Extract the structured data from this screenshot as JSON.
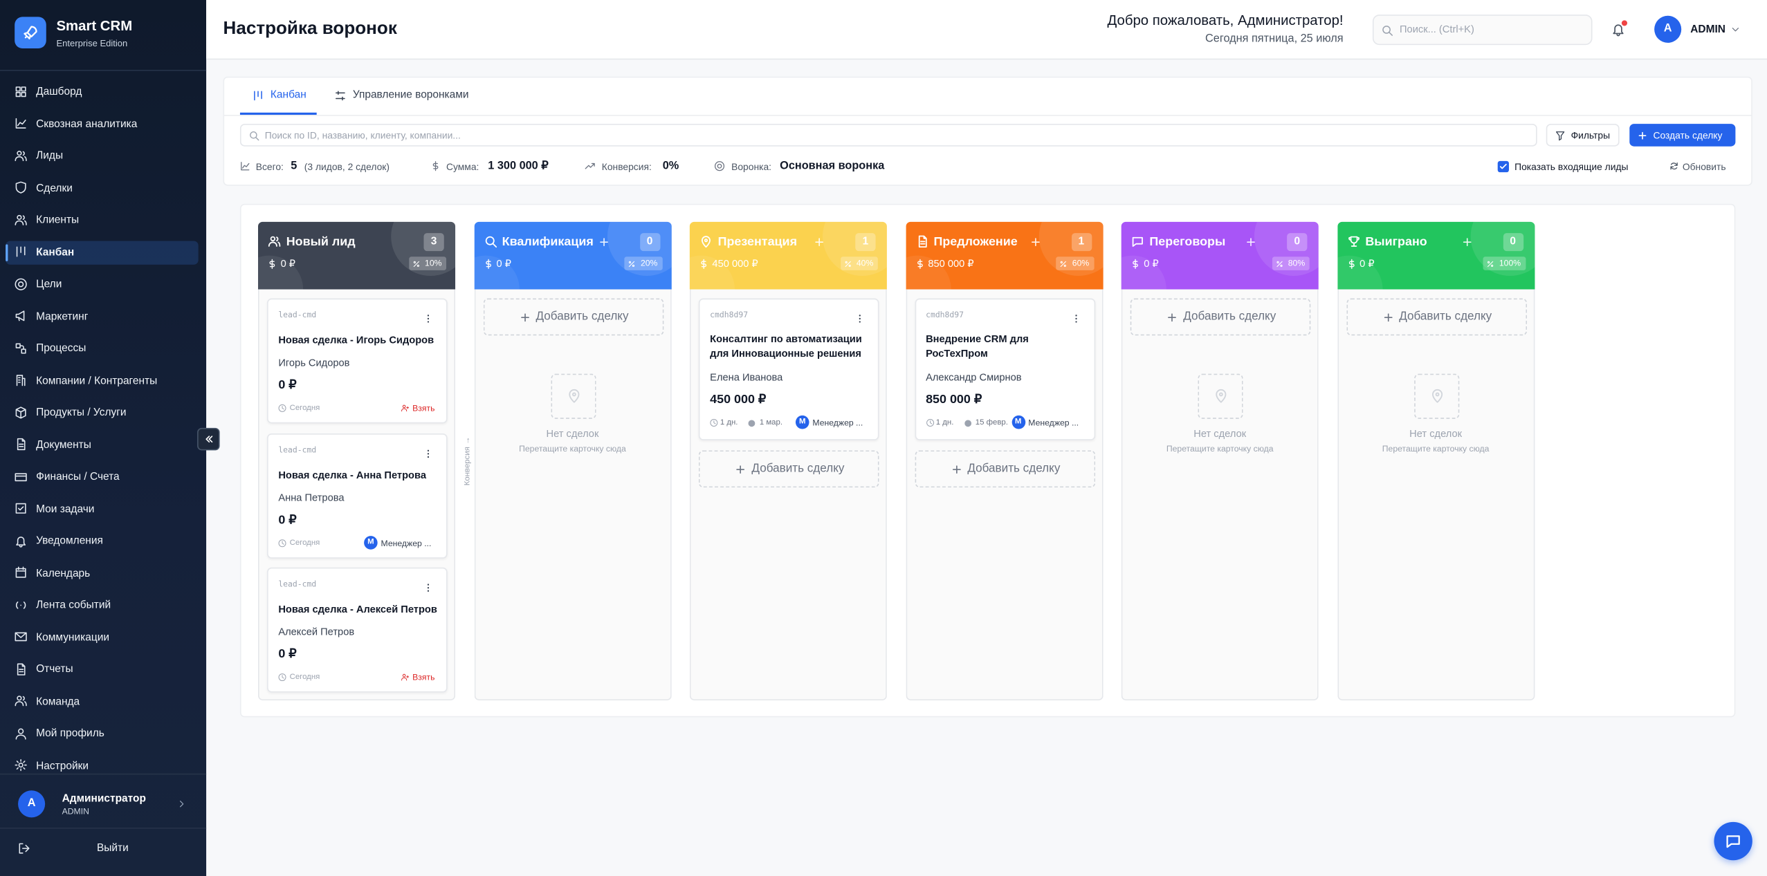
{
  "sidebar": {
    "brand": {
      "title": "Smart CRM",
      "subtitle": "Enterprise Edition"
    },
    "nav": [
      "Дашборд",
      "Сквозная аналитика",
      "Лиды",
      "Сделки",
      "Клиенты",
      "Канбан",
      "Цели",
      "Маркетинг",
      "Процессы",
      "Компании / Контрагенты",
      "Продукты / Услуги",
      "Документы",
      "Финансы / Счета",
      "Мои задачи",
      "Уведомления",
      "Календарь",
      "Лента событий",
      "Коммуникации",
      "Отчеты",
      "Команда",
      "Мой профиль",
      "Настройки"
    ],
    "active": 5,
    "user": {
      "initial": "A",
      "name": "Администратор",
      "role": "ADMIN"
    },
    "logout": "Выйти"
  },
  "header": {
    "title": "Настройка воронок",
    "welcome": "Добро пожаловать, Администратор!",
    "date": "Сегодня пятница, 25 июля",
    "search_placeholder": "Поиск... (Ctrl+K)",
    "user_initial": "A",
    "user": "ADMIN"
  },
  "tabs": [
    {
      "label": "Канбан",
      "active": true
    },
    {
      "label": "Управление воронками",
      "active": false
    }
  ],
  "toolbar": {
    "search_placeholder": "Поиск по ID, названию, клиенту, компании...",
    "filters": "Фильтры",
    "create": "Создать сделку"
  },
  "stats": {
    "total_label": "Всего:",
    "total": "5",
    "total_detail": "(3 лидов, 2 сделок)",
    "sum_label": "Сумма:",
    "sum": "1 300 000 ₽",
    "conversion_label": "Конверсия:",
    "conversion": "0%",
    "funnel_label": "Воронка:",
    "funnel": "Основная воронка",
    "show_incoming": "Показать входящие лиды",
    "show_incoming_checked": true,
    "refresh": "Обновить"
  },
  "board": {
    "conversion_hint": "Конверсия →",
    "add_deal": "Добавить сделку",
    "empty_title": "Нет сделок",
    "empty_hint": "Перетащите карточку сюда",
    "columns": [
      {
        "name": "Новый лид",
        "color": "#3d4452",
        "count": "3",
        "sum": "0 ₽",
        "percent": "10%",
        "add_button": false,
        "cards": [
          {
            "id": "lead-cmd",
            "title": "Новая сделка - Игорь Сидоров",
            "contact": "Игорь Сидоров",
            "amount": "0 ₽",
            "date": "Сегодня",
            "action": "Взять"
          },
          {
            "id": "lead-cmd",
            "title": "Новая сделка - Анна Петрова",
            "contact": "Анна Петрова",
            "amount": "0 ₽",
            "date": "Сегодня",
            "assignee_initial": "М",
            "assignee": "Менеджер ..."
          },
          {
            "id": "lead-cmd",
            "title": "Новая сделка - Алексей Петров",
            "contact": "Алексей Петров",
            "amount": "0 ₽",
            "date": "Сегодня",
            "action": "Взять"
          }
        ]
      },
      {
        "name": "Квалификация",
        "color": "#3b82f6",
        "count": "0",
        "sum": "0 ₽",
        "percent": "20%",
        "add_button": true,
        "cards": []
      },
      {
        "name": "Презентация",
        "color": "#fbd24e",
        "count": "1",
        "sum": "450 000 ₽",
        "percent": "40%",
        "add_button": true,
        "cards": [
          {
            "id": "cmdh8d97",
            "title": "Консалтинг по автоматизации для Инновационные решения",
            "contact": "Елена Иванова",
            "amount": "450 000 ₽",
            "age": "1 дн.",
            "date": "1 мар.",
            "assignee_initial": "М",
            "assignee": "Менеджер ..."
          }
        ]
      },
      {
        "name": "Предложение",
        "color": "#f97316",
        "count": "1",
        "sum": "850 000 ₽",
        "percent": "60%",
        "add_button": true,
        "cards": [
          {
            "id": "cmdh8d97",
            "title": "Внедрение CRM для РосТехПром",
            "contact": "Александр Смирнов",
            "amount": "850 000 ₽",
            "age": "1 дн.",
            "date": "15 февр.",
            "assignee_initial": "М",
            "assignee": "Менеджер ..."
          }
        ]
      },
      {
        "name": "Переговоры",
        "color": "#a855f7",
        "count": "0",
        "sum": "0 ₽",
        "percent": "80%",
        "add_button": true,
        "cards": []
      },
      {
        "name": "Выиграно",
        "color": "#22c55e",
        "count": "0",
        "sum": "0 ₽",
        "percent": "100%",
        "add_button": true,
        "cards": []
      }
    ]
  }
}
